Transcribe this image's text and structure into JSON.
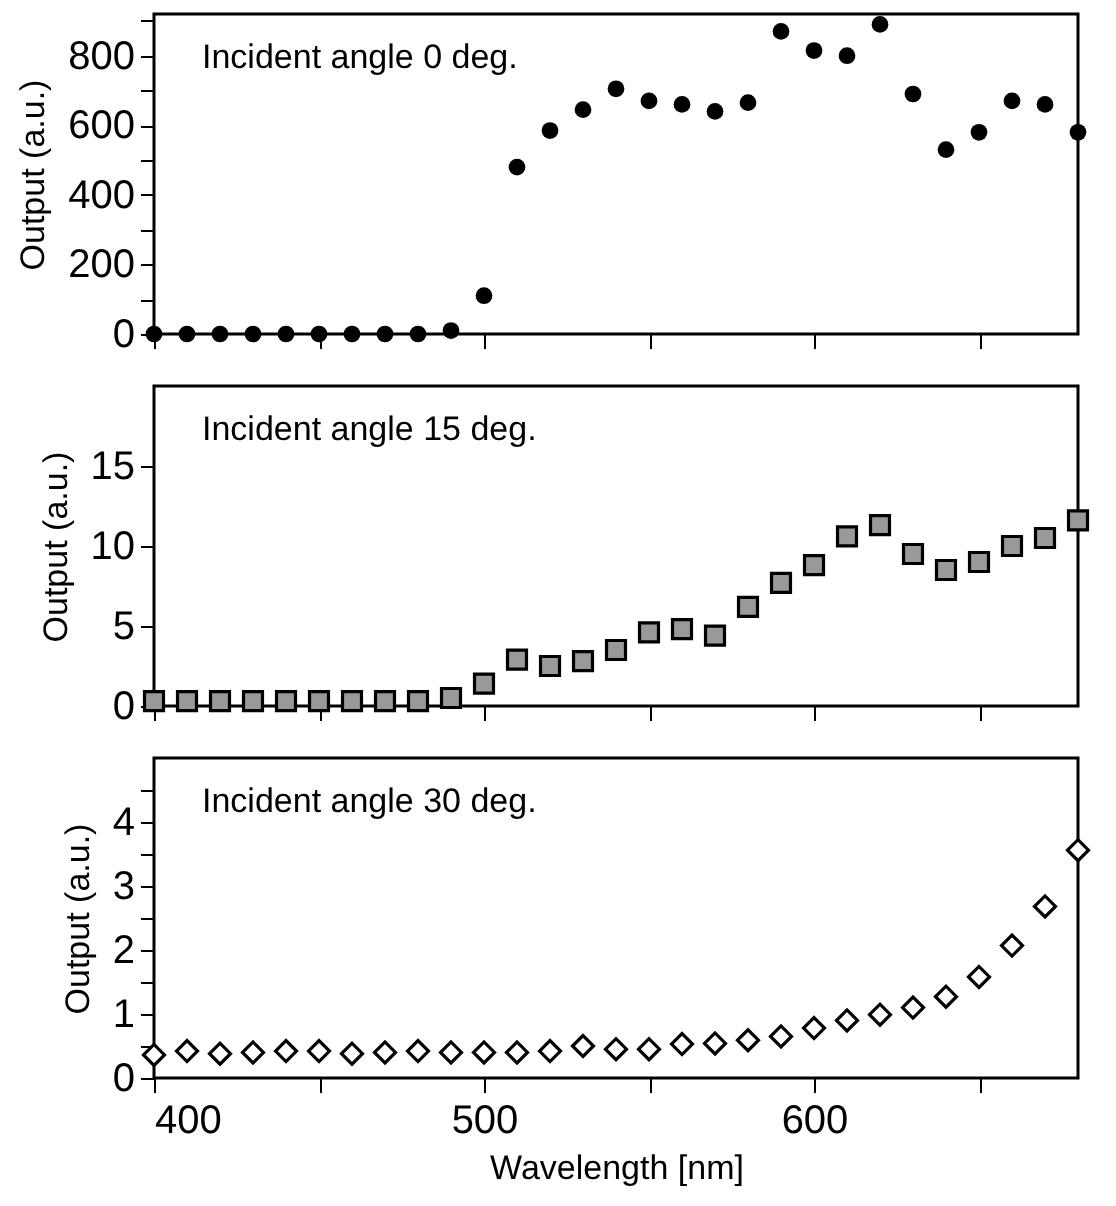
{
  "chart_data": [
    {
      "type": "scatter",
      "annotations": [
        "Incident angle   0 deg."
      ],
      "ylabel": "Output (a.u.)",
      "marker": "circle",
      "tick_labels": "y",
      "x": [
        400,
        410,
        420,
        430,
        440,
        450,
        460,
        470,
        480,
        490,
        500,
        510,
        520,
        530,
        540,
        550,
        560,
        570,
        580,
        590,
        600,
        610,
        620,
        630,
        640,
        650,
        660,
        670,
        680
      ],
      "xlim": [
        400,
        680
      ],
      "xticks": [
        400,
        {
          "value": 450,
          "label": null
        },
        500,
        {
          "value": 550,
          "label": null
        },
        600,
        {
          "value": 650,
          "label": null
        }
      ],
      "ylim": [
        0,
        920
      ],
      "yticks": [
        0,
        {
          "value": 100,
          "label": null
        },
        200,
        {
          "value": 300,
          "label": null
        },
        400,
        {
          "value": 500,
          "label": null
        },
        600,
        {
          "value": 700,
          "label": null
        },
        800,
        {
          "value": 900,
          "label": null
        }
      ],
      "series": [
        {
          "color": "#000000",
          "values": [
            0,
            0,
            0,
            0,
            0,
            0,
            0,
            0,
            0,
            10,
            110,
            480,
            585,
            645,
            705,
            670,
            660,
            640,
            665,
            870,
            815,
            800,
            890,
            690,
            530,
            580,
            670,
            660,
            580
          ]
        }
      ]
    },
    {
      "type": "scatter",
      "annotations": [
        "Incident angle   15 deg."
      ],
      "ylabel": "Output (a.u.)",
      "marker": "square",
      "tick_labels": "y",
      "x": [
        400,
        410,
        420,
        430,
        440,
        450,
        460,
        470,
        480,
        490,
        500,
        510,
        520,
        530,
        540,
        550,
        560,
        570,
        580,
        590,
        600,
        610,
        620,
        630,
        640,
        650,
        660,
        670,
        680
      ],
      "xlim": [
        400,
        680
      ],
      "xticks": [
        400,
        {
          "value": 450,
          "label": null
        },
        500,
        {
          "value": 550,
          "label": null
        },
        600,
        {
          "value": 650,
          "label": null
        }
      ],
      "ylim": [
        0,
        20
      ],
      "yticks": [
        0,
        5,
        10,
        15
      ],
      "series": [
        {
          "color": "#999999",
          "values": [
            0.3,
            0.3,
            0.3,
            0.3,
            0.3,
            0.3,
            0.3,
            0.3,
            0.3,
            0.5,
            1.4,
            2.9,
            2.5,
            2.8,
            3.5,
            4.6,
            4.8,
            4.4,
            6.2,
            7.7,
            8.8,
            10.6,
            11.3,
            9.5,
            8.5,
            9.0,
            10.0,
            10.5,
            11.6
          ]
        }
      ]
    },
    {
      "type": "scatter",
      "annotations": [
        "Incident angle   30 deg."
      ],
      "xlabel": "Wavelength [nm]",
      "ylabel": "Output (a.u.)",
      "marker": "diamond",
      "x": [
        400,
        410,
        420,
        430,
        440,
        450,
        460,
        470,
        480,
        490,
        500,
        510,
        520,
        530,
        540,
        550,
        560,
        570,
        580,
        590,
        600,
        610,
        620,
        630,
        640,
        650,
        660,
        670,
        680
      ],
      "xlim": [
        400,
        680
      ],
      "xticks": [
        400,
        {
          "value": 450,
          "label": null
        },
        500,
        {
          "value": 550,
          "label": null
        },
        600,
        {
          "value": 650,
          "label": null
        }
      ],
      "ylim": [
        0,
        5
      ],
      "yticks": [
        0,
        {
          "value": 0.5,
          "label": null
        },
        1,
        {
          "value": 1.5,
          "label": null
        },
        2,
        {
          "value": 2.5,
          "label": null
        },
        3,
        {
          "value": 3.5,
          "label": null
        },
        4,
        {
          "value": 4.5,
          "label": null
        }
      ],
      "series": [
        {
          "color": "#ffffff",
          "values": [
            0.36,
            0.42,
            0.38,
            0.4,
            0.42,
            0.42,
            0.38,
            0.4,
            0.42,
            0.4,
            0.4,
            0.4,
            0.42,
            0.5,
            0.45,
            0.45,
            0.53,
            0.54,
            0.59,
            0.65,
            0.78,
            0.9,
            0.99,
            1.1,
            1.27,
            1.58,
            2.07,
            2.68,
            3.56
          ]
        }
      ]
    }
  ]
}
